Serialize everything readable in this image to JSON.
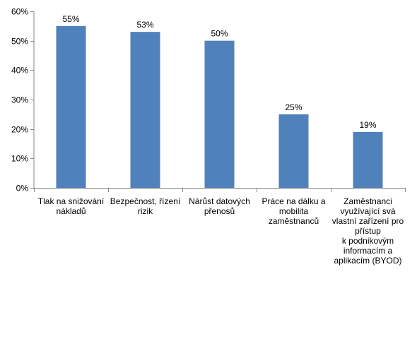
{
  "chart_data": {
    "type": "bar",
    "title": "",
    "xlabel": "",
    "ylabel": "",
    "categories": [
      "Tlak na snižování\nnákladů",
      "Bezpečnost, řízení\nrizik",
      "Nárůst datových\npřenosů",
      "Práce na dálku a\nmobilita\nzaměstnanců",
      "Zaměstnanci\nvyužívající svá\nvlastní zařízení pro\npřístup\nk podnikovým\ninformacím a\naplikacím (BYOD)"
    ],
    "values": [
      55,
      53,
      50,
      25,
      19
    ],
    "data_labels": [
      "55%",
      "53%",
      "50%",
      "25%",
      "19%"
    ],
    "ylim": [
      0,
      60
    ],
    "yticks": [
      0,
      10,
      20,
      30,
      40,
      50,
      60
    ],
    "ytick_labels": [
      "0%",
      "10%",
      "20%",
      "30%",
      "40%",
      "50%",
      "60%"
    ],
    "grid": false,
    "legend": "none",
    "bar_color": "#4F81BD",
    "axis_color": "#868686"
  }
}
